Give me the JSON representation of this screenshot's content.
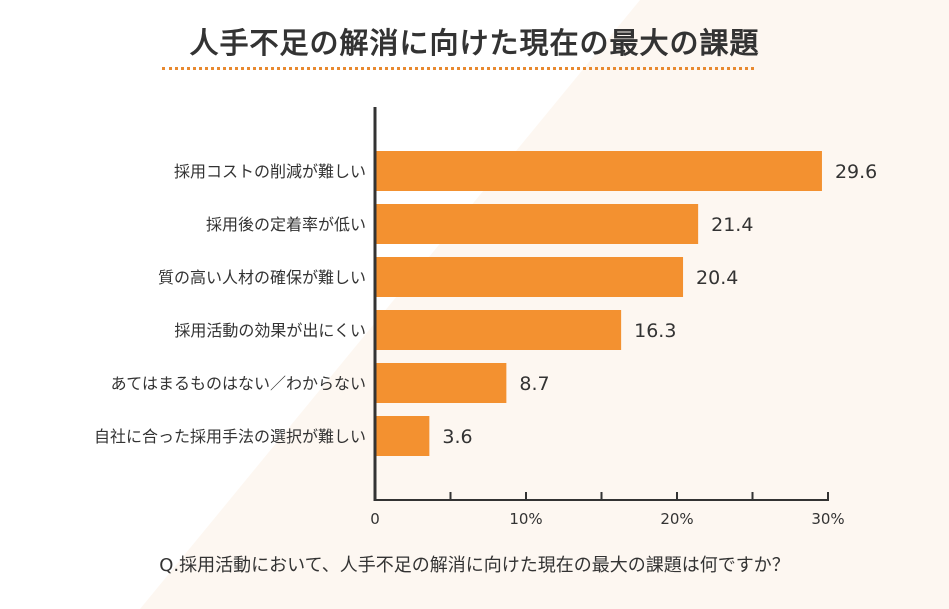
{
  "title": "人手不足の解消に向けた現在の最大の課題",
  "question": "Q.採用活動において、人手不足の解消に向けた現在の最大の課題は何ですか？",
  "colors": {
    "bar": "#F39130",
    "accent": "#E8892F",
    "axis": "#333333",
    "background": "#FDF7F1"
  },
  "chart_data": {
    "type": "bar",
    "orientation": "horizontal",
    "categories": [
      "採用コストの削減が難しい",
      "採用後の定着率が低い",
      "質の高い人材の確保が難しい",
      "採用活動の効果が出にくい",
      "あてはまるものはない／わからない",
      "自社に合った採用手法の選択が難しい"
    ],
    "values": [
      29.6,
      21.4,
      20.4,
      16.3,
      8.7,
      3.6
    ],
    "value_labels": [
      "29.6",
      "21.4",
      "20.4",
      "16.3",
      "8.7",
      "3.6"
    ],
    "xlim": [
      0,
      30
    ],
    "x_ticks": [
      0,
      10,
      20,
      30
    ],
    "x_tick_labels": [
      "0",
      "10%",
      "20%",
      "30%"
    ],
    "grid": false
  }
}
